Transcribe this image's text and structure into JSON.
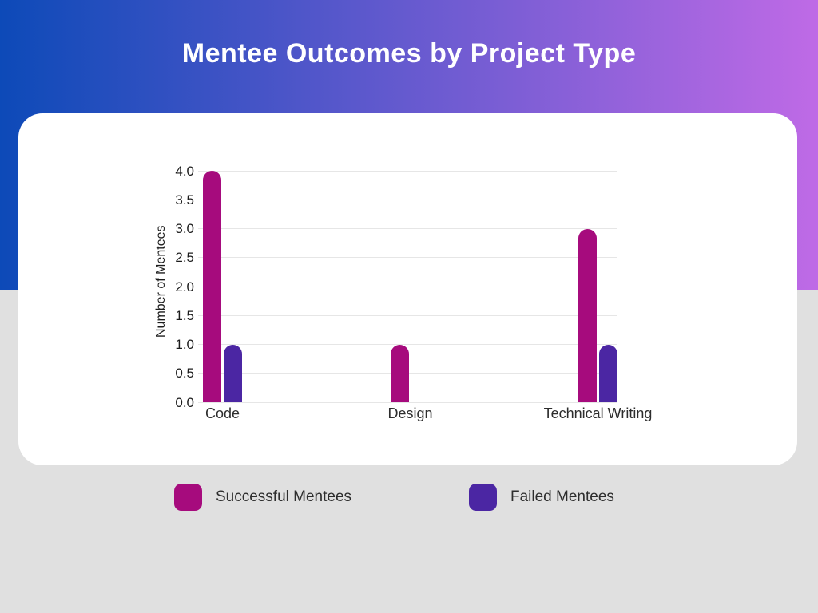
{
  "header": {
    "title": "Mentee Outcomes by Project Type"
  },
  "colors": {
    "gradient_left": "#0D4AB8",
    "gradient_right": "#BF6AE6",
    "background": "#E0E0E0",
    "card": "#FFFFFF",
    "successful": "#A60B7D",
    "failed": "#4B26A3",
    "gridline": "#E6E6E6",
    "axis_text": "#1C1C1C"
  },
  "chart_data": {
    "type": "bar",
    "title": "Mentee Outcomes by Project Type",
    "categories": [
      "Code",
      "Design",
      "Technical Writing"
    ],
    "series": [
      {
        "name": "Successful Mentees",
        "color": "#A60B7D",
        "values": [
          4,
          1,
          3
        ]
      },
      {
        "name": "Failed Mentees",
        "color": "#4B26A3",
        "values": [
          1,
          0,
          1
        ]
      }
    ],
    "xlabel": "",
    "ylabel": "Number of Mentees",
    "ylim": [
      0,
      4
    ],
    "ytick_step": 0.5,
    "ytick_labels": [
      "0.0",
      "0.5",
      "1.0",
      "1.5",
      "2.0",
      "2.5",
      "3.0",
      "3.5",
      "4.0"
    ],
    "grid": "horizontal-only",
    "legend_position": "bottom"
  },
  "legend": {
    "items": [
      {
        "label": "Successful Mentees",
        "color": "#A60B7D"
      },
      {
        "label": "Failed Mentees",
        "color": "#4B26A3"
      }
    ]
  }
}
